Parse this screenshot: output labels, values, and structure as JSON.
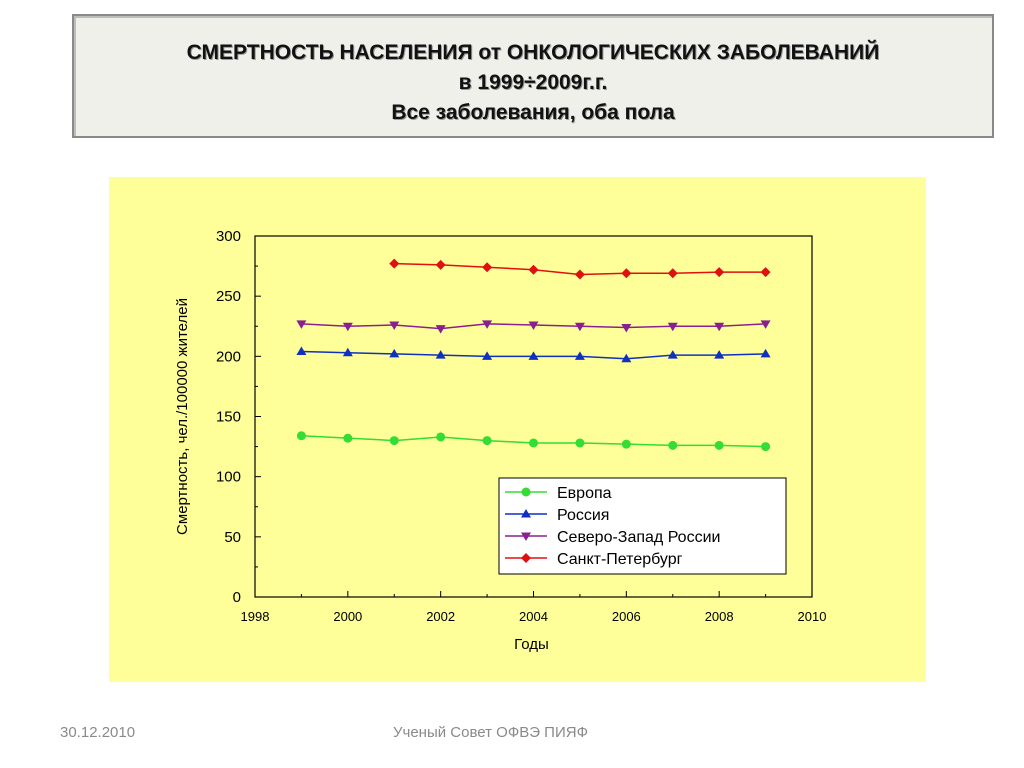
{
  "slide": {
    "title_lines": [
      "СМЕРТНОСТЬ  НАСЕЛЕНИЯ от  ОНКОЛОГИЧЕСКИХ ЗАБОЛЕВАНИЙ",
      "в  1999÷2009г.г.",
      "Все заболевания, оба пола"
    ],
    "footer_date": "30.12.2010",
    "footer_org": "Ученый Совет ОФВЭ ПИЯФ"
  },
  "colors": {
    "panel": "#ffff99",
    "europe": "#33dd33",
    "russia": "#1030c0",
    "northwest": "#8a2090",
    "spb": "#e01010"
  },
  "chart_data": {
    "type": "line",
    "xlabel": "Годы",
    "ylabel": "Смертность, чел./100000 жителей",
    "xlim": [
      1998,
      2010
    ],
    "ylim": [
      0,
      300
    ],
    "x_ticks": [
      1998,
      2000,
      2002,
      2004,
      2006,
      2008,
      2010
    ],
    "y_ticks": [
      0,
      50,
      100,
      150,
      200,
      250,
      300
    ],
    "grid": false,
    "legend_position": "bottom-right",
    "series": [
      {
        "name": "Европа",
        "marker": "circle",
        "x": [
          1999,
          2000,
          2001,
          2002,
          2003,
          2004,
          2005,
          2006,
          2007,
          2008,
          2009
        ],
        "y": [
          134,
          132,
          130,
          133,
          130,
          128,
          128,
          127,
          126,
          126,
          125
        ]
      },
      {
        "name": "Россия",
        "marker": "triangle-up",
        "x": [
          1999,
          2000,
          2001,
          2002,
          2003,
          2004,
          2005,
          2006,
          2007,
          2008,
          2009
        ],
        "y": [
          204,
          203,
          202,
          201,
          200,
          200,
          200,
          198,
          201,
          201,
          202
        ]
      },
      {
        "name": "Северо-Запад России",
        "marker": "triangle-down",
        "x": [
          1999,
          2000,
          2001,
          2002,
          2003,
          2004,
          2005,
          2006,
          2007,
          2008,
          2009
        ],
        "y": [
          227,
          225,
          226,
          223,
          227,
          226,
          225,
          224,
          225,
          225,
          227
        ]
      },
      {
        "name": "Санкт-Петербург",
        "marker": "diamond",
        "x": [
          2001,
          2002,
          2003,
          2004,
          2005,
          2006,
          2007,
          2008,
          2009
        ],
        "y": [
          277,
          276,
          274,
          272,
          268,
          269,
          269,
          270,
          270
        ]
      }
    ]
  }
}
